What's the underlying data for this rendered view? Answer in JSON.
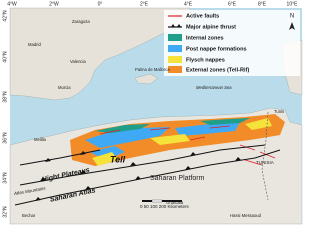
{
  "legend": {
    "items": [
      "Active faults",
      "Major alpine thrust",
      "Internal zones",
      "Post nappe formations",
      "Flysch nappes",
      "External zones (Tell-Rif)"
    ]
  },
  "map": {
    "longitudes": [
      "4°W",
      "2°W",
      "0°",
      "2°E",
      "4°E",
      "6°E",
      "8°E",
      "10°E"
    ],
    "latitudes": [
      "42°N",
      "40°N",
      "38°N",
      "36°N",
      "34°N",
      "32°N"
    ],
    "regions": [
      "Tell",
      "Hight Plateaus",
      "Saharan Atlas",
      "Saharan Platform",
      "Atlas Mountains",
      "TUNISIA"
    ],
    "places": [
      "Madrid",
      "Zaragoza",
      "Valencia",
      "Palma de Mallorca",
      "Murcia",
      "Mediterranean Sea",
      "Tunis",
      "Melilla",
      "Bechar",
      "Ghardaia",
      "Hassi Messaoud"
    ],
    "north": "N",
    "scale": "0  50  100     200 Kilometers"
  }
}
